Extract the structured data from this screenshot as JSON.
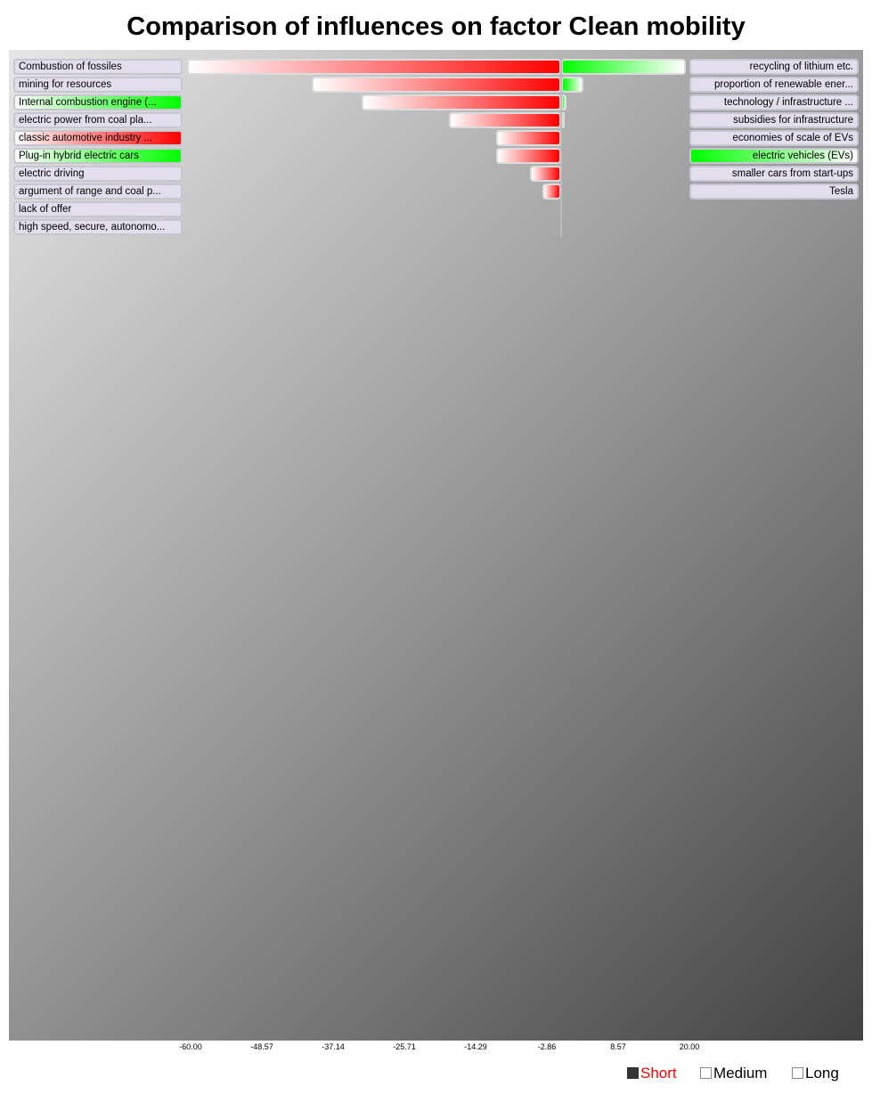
{
  "chart_data": {
    "type": "bar",
    "title": "Comparison of influences on factor Clean mobility",
    "x_ticks": [
      "-60.00",
      "-48.57",
      "-37.14",
      "-25.71",
      "-14.29",
      "-2.86",
      "8.57",
      "20.00"
    ],
    "xlim": [
      -60,
      20
    ],
    "negative_influences": [
      {
        "label": "Combustion of fossiles",
        "value": -60.0,
        "label_highlight": "none"
      },
      {
        "label": "mining for resources",
        "value": -40.0,
        "label_highlight": "none"
      },
      {
        "label": "Internal combustion engine (...",
        "value": -32.0,
        "label_highlight": "positive"
      },
      {
        "label": "electric power from coal pla...",
        "value": -18.0,
        "label_highlight": "none"
      },
      {
        "label": "classic automotive industry ...",
        "value": -10.5,
        "label_highlight": "negative"
      },
      {
        "label": "Plug-in hybrid electric cars",
        "value": -10.5,
        "label_highlight": "positive"
      },
      {
        "label": "electric driving",
        "value": -5.0,
        "label_highlight": "none"
      },
      {
        "label": "argument of range and coal p...",
        "value": -3.0,
        "label_highlight": "none"
      },
      {
        "label": "lack of offer",
        "value": 0,
        "label_highlight": "none"
      },
      {
        "label": "high speed, secure, autonomo...",
        "value": 0,
        "label_highlight": "none"
      }
    ],
    "positive_influences": [
      {
        "label": "recycling of lithium etc.",
        "value": 20.0,
        "label_highlight": "none"
      },
      {
        "label": "proportion of renewable ener...",
        "value": 3.5,
        "label_highlight": "none"
      },
      {
        "label": "technology / infrastructure ...",
        "value": 0.9,
        "label_highlight": "none"
      },
      {
        "label": "subsidies for infrastructure",
        "value": 0.6,
        "label_highlight": "none"
      },
      {
        "label": "economies of scale of EVs",
        "value": 0,
        "label_highlight": "none"
      },
      {
        "label": "electric vehicles (EVs)",
        "value": 0,
        "label_highlight": "positive"
      },
      {
        "label": "smaller cars from start-ups",
        "value": 0,
        "label_highlight": "none"
      },
      {
        "label": "Tesla",
        "value": 0,
        "label_highlight": "none"
      }
    ],
    "legend": {
      "items": [
        "Short",
        "Medium",
        "Long"
      ],
      "selected": "Short",
      "placement": "bottom-right"
    },
    "colors": {
      "negative": "#ff0000",
      "positive": "#00ff00",
      "label": "#e2deec",
      "selected_legend_text": "#ff0000"
    }
  }
}
